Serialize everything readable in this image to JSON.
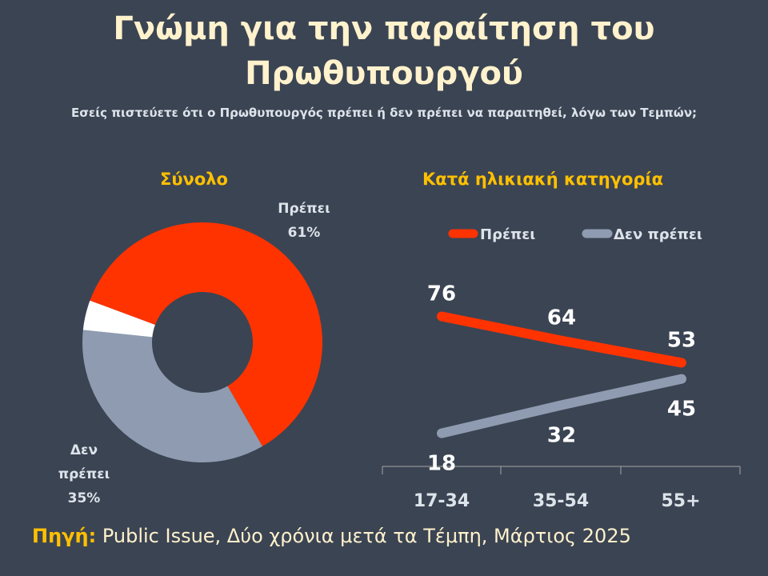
{
  "title": "Γνώμη για την παραίτηση του Πρωθυπουργού",
  "subtitle": "Εσείς πιστεύετε ότι ο Πρωθυπουργός πρέπει ή δεν πρέπει να παραιτηθεί, λόγω των Τεμπών;",
  "source": {
    "label": "Πηγή:",
    "text": " Public Issue, Δύο χρόνια μετά τα Τέμπη, Μάρτιος 2025"
  },
  "colors": {
    "should": "#ff3300",
    "should_not": "#8f9bb0",
    "other": "#ffffff",
    "background": "#3b4453"
  },
  "chart_data": [
    {
      "type": "pie",
      "variant": "donut",
      "title": "Σύνολο",
      "slices": [
        {
          "name": "Πρέπει",
          "line1": "Πρέπει",
          "line2": "",
          "value": 61,
          "label": "61%",
          "color": "#ff3300"
        },
        {
          "name": "Δεν πρέπει",
          "line1": "Δεν",
          "line2": "πρέπει",
          "value": 35,
          "label": "35%",
          "color": "#8f9bb0"
        },
        {
          "name": "",
          "value": 4,
          "label": "",
          "color": "#ffffff"
        }
      ]
    },
    {
      "type": "line",
      "title": "Κατά ηλικιακή κατηγορία",
      "categories": [
        "17-34",
        "35-54",
        "55+"
      ],
      "legend_position": "top",
      "series": [
        {
          "name": "Πρέπει",
          "values": [
            76,
            64,
            53
          ],
          "color": "#ff3300"
        },
        {
          "name": "Δεν πρέπει",
          "values": [
            18,
            32,
            45
          ],
          "color": "#8f9bb0"
        }
      ],
      "ylim": [
        0,
        100
      ],
      "grid": false
    }
  ]
}
